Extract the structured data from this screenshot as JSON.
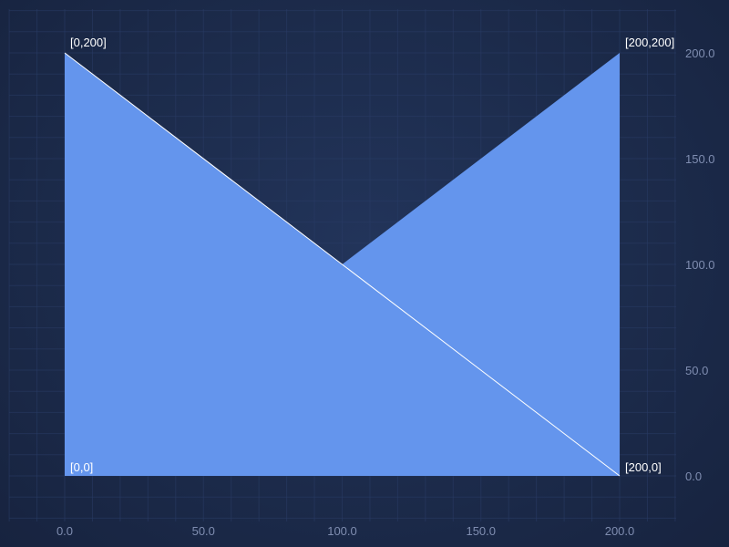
{
  "chart_data": {
    "type": "area",
    "title": "",
    "xlabel": "",
    "ylabel": "",
    "xlim": [
      0,
      200
    ],
    "ylim": [
      0,
      200
    ],
    "x_ticks": [
      "0.0",
      "50.0",
      "100.0",
      "150.0",
      "200.0"
    ],
    "y_ticks": [
      "0.0",
      "50.0",
      "100.0",
      "150.0",
      "200.0"
    ],
    "y_axis_side": "right",
    "grid": true,
    "colors": {
      "fill": "#6495ed",
      "edge": "#ffffff",
      "grid": "#2a3c66",
      "tick_text": "#7f8db0",
      "label_text": "#ffffff"
    },
    "vertices": [
      {
        "x": 0,
        "y": 0,
        "label": "[0,0]"
      },
      {
        "x": 0,
        "y": 200,
        "label": "[0,200]"
      },
      {
        "x": 100,
        "y": 100,
        "label": ""
      },
      {
        "x": 200,
        "y": 200,
        "label": "[200,200]"
      },
      {
        "x": 200,
        "y": 0,
        "label": "[200,0]"
      }
    ],
    "edge_lines": [
      {
        "from": [
          0,
          200
        ],
        "to": [
          200,
          0
        ]
      }
    ]
  }
}
